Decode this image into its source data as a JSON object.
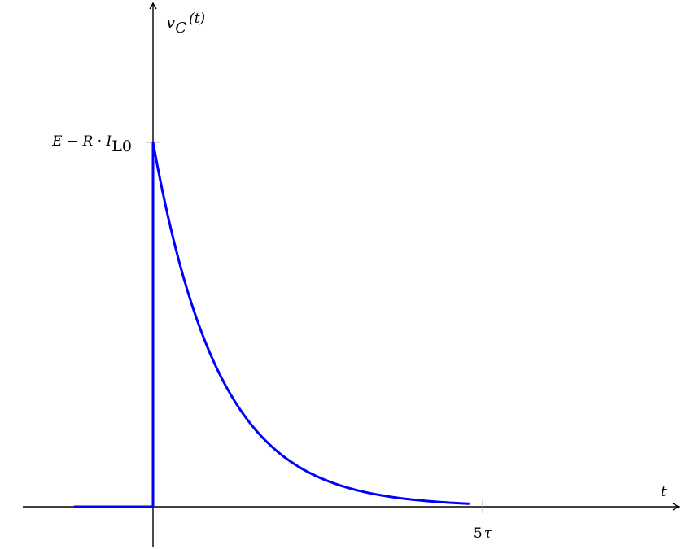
{
  "chart_data": {
    "type": "line",
    "title": "",
    "xlabel": "t",
    "ylabel": "v_C(t)",
    "ylabel_parts": {
      "main": "v",
      "sub": "C",
      "arg": "(t)"
    },
    "xlabel_parts": {
      "main": "t"
    },
    "x_ticks": [
      {
        "value": 5,
        "label": "5τ",
        "label_parts": {
          "num": "5",
          "sym": "τ"
        }
      }
    ],
    "y_ticks": [
      {
        "value": 1,
        "label": "E − R · I_L0",
        "label_parts": {
          "main": "E − R · I",
          "sub": "L0"
        }
      }
    ],
    "xlim": [
      -1.2,
      4.8
    ],
    "ylim": [
      -0.04,
      1.38
    ],
    "x_unit": "τ",
    "grid": false,
    "legend": "none",
    "series": [
      {
        "function": "step_exponential_decay",
        "description_values": {
          "before_zero": 0,
          "at_zero": 1,
          "tau": 1
        },
        "color": "#0000ff",
        "x": [
          -1.2,
          0,
          0,
          0.25,
          0.5,
          0.75,
          1,
          1.5,
          2,
          2.5,
          3,
          3.5,
          4,
          4.5,
          4.8
        ],
        "y": [
          0,
          0,
          1,
          0.779,
          0.607,
          0.472,
          0.368,
          0.223,
          0.135,
          0.082,
          0.05,
          0.03,
          0.018,
          0.011,
          0.008
        ]
      }
    ],
    "colors": {
      "axis": "#000000",
      "series": "#0000ff",
      "tick": "#aaaaaa"
    }
  }
}
